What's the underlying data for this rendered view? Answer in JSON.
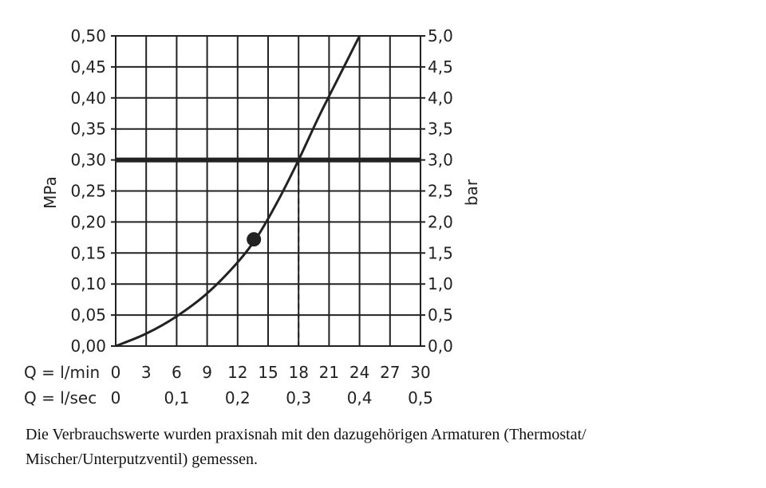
{
  "chart_data": {
    "type": "line",
    "left_axis": {
      "label": "MPa",
      "ticks": [
        0.0,
        0.05,
        0.1,
        0.15,
        0.2,
        0.25,
        0.3,
        0.35,
        0.4,
        0.45,
        0.5
      ],
      "tick_labels": [
        "0,00",
        "0,05",
        "0,10",
        "0,15",
        "0,20",
        "0,25",
        "0,30",
        "0,35",
        "0,40",
        "0,45",
        "0,50"
      ],
      "ylim": [
        0,
        0.5
      ]
    },
    "right_axis": {
      "label": "bar",
      "tick_labels": [
        "0,0",
        "0,5",
        "1,0",
        "1,5",
        "2,0",
        "2,5",
        "3,0",
        "3,5",
        "4,0",
        "4,5",
        "5,0"
      ],
      "ylim": [
        0,
        5
      ]
    },
    "x_axis_lpm": {
      "label": "Q = l/min",
      "ticks": [
        0,
        3,
        6,
        9,
        12,
        15,
        18,
        21,
        24,
        27,
        30
      ],
      "tick_labels": [
        "0",
        "3",
        "6",
        "9",
        "12",
        "15",
        "18",
        "21",
        "24",
        "27",
        "30"
      ],
      "xlim": [
        0,
        30
      ]
    },
    "x_axis_lps": {
      "label": "Q = l/sec",
      "ticks": [
        0,
        0.1,
        0.2,
        0.3,
        0.4,
        0.5
      ],
      "tick_labels": [
        "0",
        "0,1",
        "0,2",
        "0,3",
        "0,4",
        "0,5"
      ]
    },
    "grid": true,
    "series": [
      {
        "x": [
          0,
          3,
          6,
          9,
          12,
          14,
          16,
          18,
          20,
          22,
          24
        ],
        "y": [
          0,
          0.02,
          0.048,
          0.085,
          0.135,
          0.178,
          0.235,
          0.3,
          0.37,
          0.435,
          0.5
        ],
        "color": "#222222"
      }
    ],
    "reference_line": {
      "y": 0.3,
      "color": "#222222"
    },
    "dropline": {
      "x": 18,
      "y": 0.3
    },
    "marker": {
      "x": 13.6,
      "y": 0.172,
      "color": "#222222"
    }
  },
  "caption": "Die Verbrauchswerte wurden praxisnah mit den dazugehörigen Armaturen (Thermostat/ Mischer/Unterputzventil) gemessen."
}
